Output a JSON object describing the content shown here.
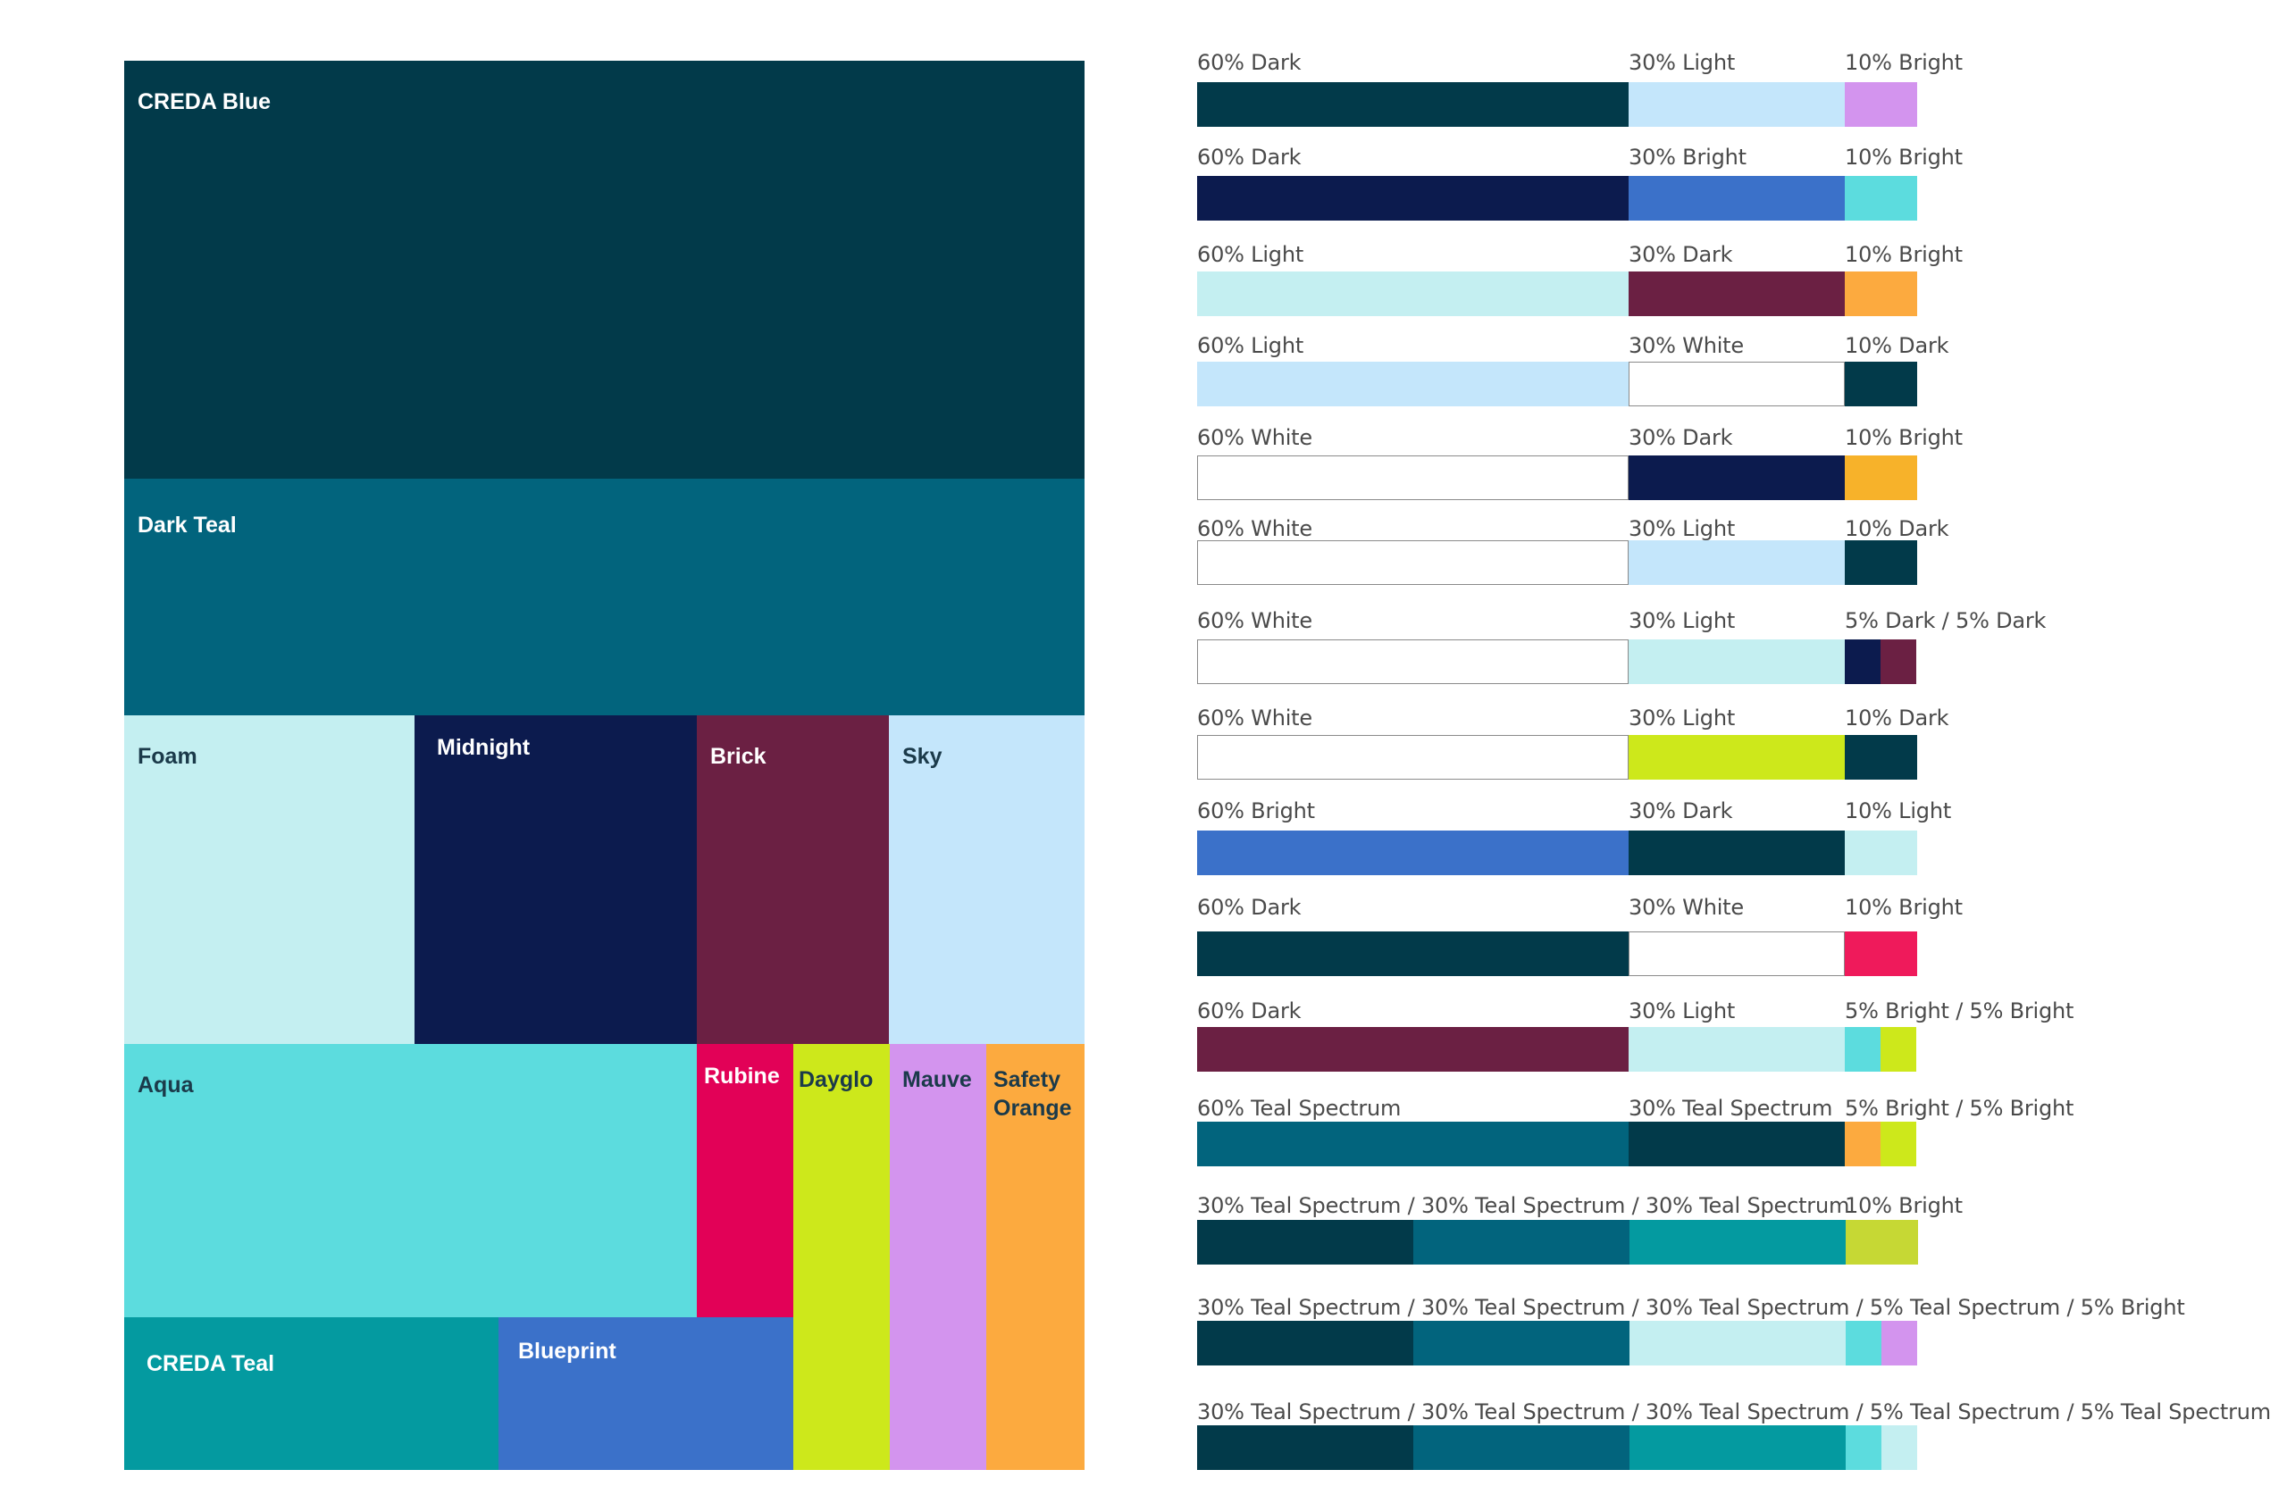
{
  "palette": [
    {
      "name": "CREDA Blue",
      "color": "#023a4a",
      "text_color": "#ffffff"
    },
    {
      "name": "Dark Teal",
      "color": "#02647d",
      "text_color": "#ffffff"
    },
    {
      "name": "Foam",
      "color": "#c4eff1",
      "text_color": "#1b3a4a"
    },
    {
      "name": "Midnight",
      "color": "#0c1b4e",
      "text_color": "#ffffff"
    },
    {
      "name": "Brick",
      "color": "#6b2043",
      "text_color": "#ffffff"
    },
    {
      "name": "Sky",
      "color": "#c4e6fb",
      "text_color": "#1b3a4a"
    },
    {
      "name": "Aqua",
      "color": "#5cdcde",
      "text_color": "#1b3a4a"
    },
    {
      "name": "Rubine",
      "color": "#e20157",
      "text_color": "#ffffff"
    },
    {
      "name": "Dayglo",
      "color": "#cde81b",
      "text_color": "#1b3a4a"
    },
    {
      "name": "Mauve",
      "color": "#d394ee",
      "text_color": "#1b3a4a"
    },
    {
      "name": "Safety\nOrange",
      "color": "#fcaa3f",
      "text_color": "#1b3a4a"
    },
    {
      "name": "CREDA Teal",
      "color": "#049aa0",
      "text_color": "#ffffff"
    },
    {
      "name": "Blueprint",
      "color": "#3b71c9",
      "text_color": "#ffffff"
    }
  ],
  "ratio_rows": [
    {
      "labels": [
        "60% Dark",
        "30% Light",
        "10% Bright"
      ],
      "segments": [
        {
          "share": 60,
          "color": "#023a4a"
        },
        {
          "share": 30,
          "color": "#c4e6fb"
        },
        {
          "share": 10,
          "color": "#d394ee"
        }
      ]
    },
    {
      "labels": [
        "60% Dark",
        "30% Bright",
        "10%  Bright"
      ],
      "segments": [
        {
          "share": 60,
          "color": "#0c1b4e"
        },
        {
          "share": 30,
          "color": "#3b71c9"
        },
        {
          "share": 10,
          "color": "#5cdcde"
        }
      ]
    },
    {
      "labels": [
        "60% Light",
        "30% Dark",
        "10% Bright"
      ],
      "segments": [
        {
          "share": 60,
          "color": "#c4eff1"
        },
        {
          "share": 30,
          "color": "#6b2043"
        },
        {
          "share": 10,
          "color": "#fcaa3f"
        }
      ]
    },
    {
      "labels": [
        "60% Light",
        "30% White",
        "10% Dark"
      ],
      "segments": [
        {
          "share": 60,
          "color": "#c4e6fb"
        },
        {
          "share": 30,
          "color": "#ffffff"
        },
        {
          "share": 10,
          "color": "#023a4a"
        }
      ]
    },
    {
      "labels": [
        "60% White",
        "30% Dark",
        "10% Bright"
      ],
      "segments": [
        {
          "share": 60,
          "color": "#ffffff"
        },
        {
          "share": 30,
          "color": "#0c1b4e"
        },
        {
          "share": 10,
          "color": "#f7b22a"
        }
      ]
    },
    {
      "labels": [
        "60% White",
        "30% Light",
        "10% Dark"
      ],
      "segments": [
        {
          "share": 60,
          "color": "#ffffff"
        },
        {
          "share": 30,
          "color": "#c4e6fb"
        },
        {
          "share": 10,
          "color": "#023a4a"
        }
      ]
    },
    {
      "labels": [
        "60% White",
        "30% Light",
        "5% Dark / 5% Dark"
      ],
      "segments": [
        {
          "share": 60,
          "color": "#ffffff"
        },
        {
          "share": 30,
          "color": "#c4eff1"
        },
        {
          "share": 5,
          "color": "#0c1b4e"
        },
        {
          "share": 5,
          "color": "#6b2043"
        }
      ]
    },
    {
      "labels": [
        "60% White",
        "30% Light",
        "10% Dark"
      ],
      "segments": [
        {
          "share": 60,
          "color": "#ffffff"
        },
        {
          "share": 30,
          "color": "#cde81b"
        },
        {
          "share": 10,
          "color": "#023a4a"
        }
      ]
    },
    {
      "labels": [
        "60% Bright",
        "30% Dark",
        "10% Light"
      ],
      "segments": [
        {
          "share": 60,
          "color": "#3b71c9"
        },
        {
          "share": 30,
          "color": "#023a4a"
        },
        {
          "share": 10,
          "color": "#c4eff1"
        }
      ]
    },
    {
      "labels": [
        "60% Dark",
        "30% White",
        "10% Bright"
      ],
      "segments": [
        {
          "share": 60,
          "color": "#023a4a"
        },
        {
          "share": 30,
          "color": "#ffffff"
        },
        {
          "share": 10,
          "color": "#ef1a5b"
        }
      ]
    },
    {
      "labels": [
        "60% Dark",
        "30% Light",
        "5% Bright / 5% Bright"
      ],
      "segments": [
        {
          "share": 60,
          "color": "#6b2043"
        },
        {
          "share": 30,
          "color": "#c4eff1"
        },
        {
          "share": 5,
          "color": "#5cdcde"
        },
        {
          "share": 5,
          "color": "#cde81b"
        }
      ]
    },
    {
      "labels": [
        "60% Teal Spectrum",
        "30% Teal Spectrum",
        "5% Bright / 5% Bright"
      ],
      "segments": [
        {
          "share": 60,
          "color": "#02647d"
        },
        {
          "share": 30,
          "color": "#023a4a"
        },
        {
          "share": 5,
          "color": "#fcaa3f"
        },
        {
          "share": 5,
          "color": "#cde81b"
        }
      ]
    },
    {
      "labels": [
        "30% Teal Spectrum / 30% Teal Spectrum / 30% Teal Spectrum",
        "10% Bright"
      ],
      "segments": [
        {
          "share": 30,
          "color": "#023a4a"
        },
        {
          "share": 30,
          "color": "#02647d"
        },
        {
          "share": 30,
          "color": "#049aa0"
        },
        {
          "share": 10,
          "color": "#c6d834"
        }
      ]
    },
    {
      "labels": [
        "30% Teal Spectrum / 30% Teal Spectrum  / 30% Teal Spectrum  / 5% Teal Spectrum / 5% Bright"
      ],
      "segments": [
        {
          "share": 30,
          "color": "#023a4a"
        },
        {
          "share": 30,
          "color": "#02647d"
        },
        {
          "share": 30,
          "color": "#c4eff1"
        },
        {
          "share": 5,
          "color": "#5cdcde"
        },
        {
          "share": 5,
          "color": "#d394ee"
        }
      ]
    },
    {
      "labels": [
        "30% Teal Spectrum / 30% Teal Spectrum / 30% Teal Spectrum / 5% Teal Spectrum / 5% Teal Spectrum"
      ],
      "segments": [
        {
          "share": 30,
          "color": "#023a4a"
        },
        {
          "share": 30,
          "color": "#02647d"
        },
        {
          "share": 30,
          "color": "#049aa0"
        },
        {
          "share": 5,
          "color": "#5cdcde"
        },
        {
          "share": 5,
          "color": "#c4eff1"
        }
      ]
    }
  ]
}
